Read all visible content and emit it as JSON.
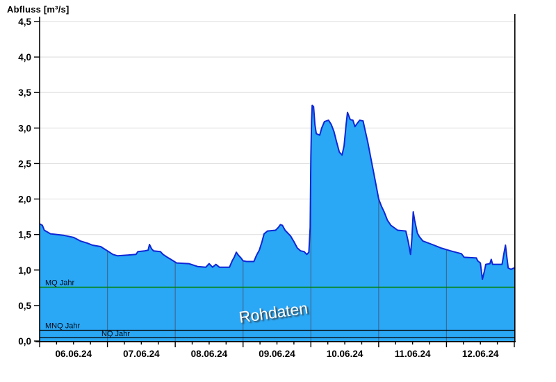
{
  "title": "Abfluss [m³/s]",
  "watermark": "Rohdaten",
  "colors": {
    "background": "#ffffff",
    "area_fill": "#2aa7f5",
    "area_outline": "#0e27d6",
    "h_gridline": "#e2e2e2",
    "v_gridline": "#3c6b96",
    "axis": "#000000",
    "mq_line": "#008200",
    "mnq_line": "#000000",
    "nq_line": "#000000",
    "watermark_text": "#ffffff"
  },
  "chart_data": {
    "type": "area",
    "title": "Abfluss [m³/s]",
    "ylabel": "Abfluss [m³/s]",
    "xlabel": "",
    "ylim": [
      0,
      4.5
    ],
    "y_tick_step": 0.5,
    "y_tick_labels": [
      "0,0",
      "0,5",
      "1,0",
      "1,5",
      "2,0",
      "2,5",
      "3,0",
      "3,5",
      "4,0",
      "4,5"
    ],
    "x_labels": [
      "06.06.24",
      "07.06.24",
      "08.06.24",
      "09.06.24",
      "10.06.24",
      "11.06.24",
      "12.06.24"
    ],
    "x_range_days": 7,
    "x_minor_tick_hours": 6,
    "grid": true,
    "legend_position": "none",
    "reference_lines": [
      {
        "name": "MQ Jahr",
        "value": 0.76,
        "color": "#008200",
        "label_x_day": 0.08,
        "label_row": "above"
      },
      {
        "name": "MNQ Jahr",
        "value": 0.15,
        "color": "#000000",
        "label_x_day": 0.08,
        "label_row": "above"
      },
      {
        "name": "NQ Jahr",
        "value": 0.05,
        "color": "#000000",
        "label_x_day": 0.91,
        "label_row": "above"
      }
    ],
    "series": [
      {
        "name": "Abfluss Rohdaten",
        "unit": "m³/s",
        "points": [
          [
            0.0,
            1.65
          ],
          [
            0.04,
            1.63
          ],
          [
            0.07,
            1.56
          ],
          [
            0.16,
            1.51
          ],
          [
            0.35,
            1.49
          ],
          [
            0.5,
            1.46
          ],
          [
            0.6,
            1.41
          ],
          [
            0.7,
            1.38
          ],
          [
            0.78,
            1.35
          ],
          [
            0.9,
            1.33
          ],
          [
            0.95,
            1.3
          ],
          [
            1.0,
            1.27
          ],
          [
            1.08,
            1.22
          ],
          [
            1.15,
            1.2
          ],
          [
            1.3,
            1.21
          ],
          [
            1.42,
            1.22
          ],
          [
            1.45,
            1.26
          ],
          [
            1.55,
            1.27
          ],
          [
            1.6,
            1.28
          ],
          [
            1.62,
            1.36
          ],
          [
            1.65,
            1.3
          ],
          [
            1.68,
            1.27
          ],
          [
            1.78,
            1.26
          ],
          [
            1.82,
            1.22
          ],
          [
            1.9,
            1.17
          ],
          [
            1.97,
            1.13
          ],
          [
            2.02,
            1.1
          ],
          [
            2.2,
            1.09
          ],
          [
            2.33,
            1.05
          ],
          [
            2.45,
            1.04
          ],
          [
            2.5,
            1.09
          ],
          [
            2.55,
            1.04
          ],
          [
            2.6,
            1.08
          ],
          [
            2.65,
            1.04
          ],
          [
            2.8,
            1.04
          ],
          [
            2.84,
            1.13
          ],
          [
            2.87,
            1.18
          ],
          [
            2.9,
            1.25
          ],
          [
            2.93,
            1.21
          ],
          [
            2.97,
            1.17
          ],
          [
            3.0,
            1.13
          ],
          [
            3.05,
            1.12
          ],
          [
            3.16,
            1.12
          ],
          [
            3.2,
            1.21
          ],
          [
            3.24,
            1.28
          ],
          [
            3.28,
            1.4
          ],
          [
            3.31,
            1.51
          ],
          [
            3.36,
            1.55
          ],
          [
            3.48,
            1.56
          ],
          [
            3.52,
            1.6
          ],
          [
            3.55,
            1.64
          ],
          [
            3.58,
            1.63
          ],
          [
            3.62,
            1.56
          ],
          [
            3.7,
            1.48
          ],
          [
            3.75,
            1.4
          ],
          [
            3.8,
            1.31
          ],
          [
            3.85,
            1.27
          ],
          [
            3.9,
            1.26
          ],
          [
            3.94,
            1.22
          ],
          [
            3.97,
            1.25
          ],
          [
            3.99,
            1.6
          ],
          [
            4.0,
            2.6
          ],
          [
            4.01,
            3.1
          ],
          [
            4.02,
            3.32
          ],
          [
            4.04,
            3.3
          ],
          [
            4.06,
            3.05
          ],
          [
            4.08,
            2.92
          ],
          [
            4.13,
            2.9
          ],
          [
            4.16,
            3.0
          ],
          [
            4.2,
            3.09
          ],
          [
            4.26,
            3.11
          ],
          [
            4.3,
            3.05
          ],
          [
            4.34,
            2.95
          ],
          [
            4.38,
            2.8
          ],
          [
            4.42,
            2.66
          ],
          [
            4.46,
            2.62
          ],
          [
            4.49,
            2.75
          ],
          [
            4.52,
            3.05
          ],
          [
            4.54,
            3.22
          ],
          [
            4.58,
            3.12
          ],
          [
            4.62,
            3.11
          ],
          [
            4.65,
            3.02
          ],
          [
            4.68,
            3.06
          ],
          [
            4.72,
            3.11
          ],
          [
            4.77,
            3.1
          ],
          [
            4.8,
            2.97
          ],
          [
            4.84,
            2.8
          ],
          [
            4.88,
            2.6
          ],
          [
            4.92,
            2.4
          ],
          [
            4.96,
            2.2
          ],
          [
            5.0,
            2.0
          ],
          [
            5.04,
            1.9
          ],
          [
            5.08,
            1.82
          ],
          [
            5.13,
            1.7
          ],
          [
            5.18,
            1.63
          ],
          [
            5.28,
            1.56
          ],
          [
            5.4,
            1.55
          ],
          [
            5.44,
            1.38
          ],
          [
            5.47,
            1.22
          ],
          [
            5.49,
            1.45
          ],
          [
            5.51,
            1.82
          ],
          [
            5.53,
            1.7
          ],
          [
            5.57,
            1.52
          ],
          [
            5.6,
            1.47
          ],
          [
            5.65,
            1.41
          ],
          [
            5.79,
            1.36
          ],
          [
            5.92,
            1.31
          ],
          [
            6.06,
            1.27
          ],
          [
            6.22,
            1.23
          ],
          [
            6.26,
            1.18
          ],
          [
            6.44,
            1.17
          ],
          [
            6.46,
            1.13
          ],
          [
            6.5,
            1.1
          ],
          [
            6.53,
            0.87
          ],
          [
            6.56,
            0.99
          ],
          [
            6.58,
            1.08
          ],
          [
            6.64,
            1.09
          ],
          [
            6.66,
            1.15
          ],
          [
            6.68,
            1.08
          ],
          [
            6.82,
            1.08
          ],
          [
            6.85,
            1.25
          ],
          [
            6.87,
            1.35
          ],
          [
            6.89,
            1.18
          ],
          [
            6.91,
            1.03
          ],
          [
            6.95,
            1.01
          ],
          [
            7.0,
            1.03
          ]
        ]
      }
    ]
  }
}
